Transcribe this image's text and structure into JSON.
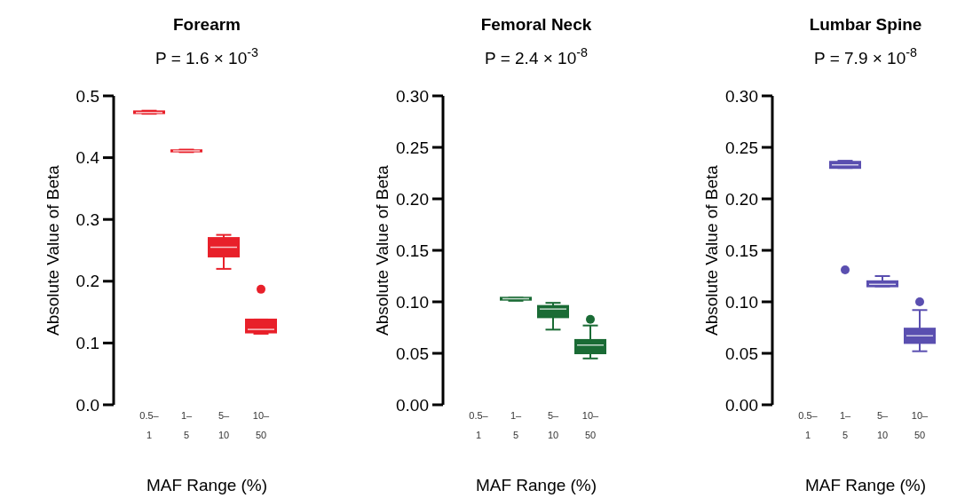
{
  "chart_data": [
    {
      "type": "box",
      "title": "Forearm",
      "subtitle": "P = 1.6 × 10$^{-3}$",
      "xlabel": "MAF Range (%)",
      "ylabel": "Absolute Value of Beta",
      "categories": [
        "0.5–\n1",
        "1–\n5",
        "5–\n10",
        "10–\n50"
      ],
      "ylim": [
        0,
        0.5
      ],
      "yticks": [
        {
          "value": 0,
          "label": "0.0"
        },
        0.1,
        0.2,
        0.3,
        0.4,
        0.5
      ],
      "grid": false,
      "series": [
        {
          "color": "#e8202a",
          "boxes": [
            {
              "low": 0.471,
              "q1": 0.472,
              "median": 0.473,
              "q3": 0.475,
              "high": 0.476
            },
            {
              "low": 0.409,
              "q1": 0.41,
              "median": 0.411,
              "q3": 0.412,
              "high": 0.413
            },
            {
              "low": 0.22,
              "q1": 0.24,
              "median": 0.255,
              "q3": 0.27,
              "high": 0.275
            },
            {
              "low": 0.115,
              "q1": 0.117,
              "median": 0.122,
              "q3": 0.138,
              "high": 0.138,
              "outliers": [
                0.187
              ]
            }
          ]
        }
      ]
    },
    {
      "type": "box",
      "title": "Femoral Neck",
      "subtitle": "P = 2.4 × 10$^{-8}$",
      "xlabel": "MAF Range (%)",
      "ylabel": "Absolute Value of Beta",
      "categories": [
        "0.5–\n1",
        "1–\n5",
        "5–\n10",
        "10–\n50"
      ],
      "ylim": [
        0,
        0.3
      ],
      "yticks": [
        {
          "value": 0,
          "label": "0.00"
        },
        0.05,
        {
          "value": 0.1,
          "label": "0.10"
        },
        0.15,
        {
          "value": 0.2,
          "label": "0.20"
        },
        0.25,
        {
          "value": 0.3,
          "label": "0.30"
        }
      ],
      "grid": false,
      "series": [
        {
          "color": "#1a6b35",
          "boxes": [
            null,
            {
              "low": 0.101,
              "q1": 0.102,
              "median": 0.103,
              "q3": 0.104,
              "high": 0.104
            },
            {
              "low": 0.073,
              "q1": 0.085,
              "median": 0.093,
              "q3": 0.096,
              "high": 0.099
            },
            {
              "low": 0.045,
              "q1": 0.05,
              "median": 0.058,
              "q3": 0.063,
              "high": 0.077,
              "outliers": [
                0.083
              ]
            }
          ]
        }
      ]
    },
    {
      "type": "box",
      "title": "Lumbar Spine",
      "subtitle": "P = 7.9 × 10$^{-8}$",
      "xlabel": "MAF Range (%)",
      "ylabel": "Absolute Value of Beta",
      "categories": [
        "0.5–\n1",
        "1–\n5",
        "5–\n10",
        "10–\n50"
      ],
      "ylim": [
        0,
        0.3
      ],
      "yticks": [
        {
          "value": 0,
          "label": "0.00"
        },
        0.05,
        {
          "value": 0.1,
          "label": "0.10"
        },
        0.15,
        {
          "value": 0.2,
          "label": "0.20"
        },
        0.25,
        {
          "value": 0.3,
          "label": "0.30"
        }
      ],
      "grid": false,
      "series": [
        {
          "color": "#5a4fb0",
          "boxes": [
            null,
            {
              "low": 0.23,
              "q1": 0.23,
              "median": 0.233,
              "q3": 0.236,
              "high": 0.237,
              "outliers": [
                0.131
              ]
            },
            {
              "low": 0.115,
              "q1": 0.115,
              "median": 0.117,
              "q3": 0.12,
              "high": 0.125
            },
            {
              "low": 0.052,
              "q1": 0.06,
              "median": 0.067,
              "q3": 0.074,
              "high": 0.092,
              "outliers": [
                0.1
              ]
            }
          ]
        }
      ]
    }
  ]
}
